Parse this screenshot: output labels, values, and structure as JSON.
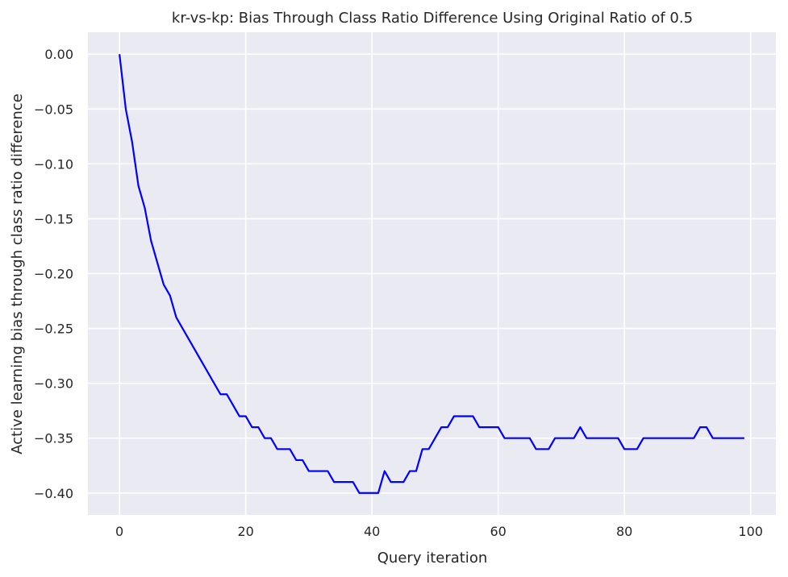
{
  "chart_data": {
    "type": "line",
    "title": "kr-vs-kp: Bias Through Class Ratio Difference Using Original Ratio of 0.5",
    "xlabel": "Query iteration",
    "ylabel": "Active learning bias through class ratio difference",
    "xlim": [
      -5,
      104
    ],
    "ylim": [
      -0.42,
      0.02
    ],
    "x_ticks": [
      0,
      20,
      40,
      60,
      80,
      100
    ],
    "y_ticks": [
      0.0,
      -0.05,
      -0.1,
      -0.15,
      -0.2,
      -0.25,
      -0.3,
      -0.35,
      -0.4
    ],
    "x_tick_labels": [
      "0",
      "20",
      "40",
      "60",
      "80",
      "100"
    ],
    "y_tick_labels": [
      "0.00",
      "−0.05",
      "−0.10",
      "−0.15",
      "−0.20",
      "−0.25",
      "−0.30",
      "−0.35",
      "−0.40"
    ],
    "grid": true,
    "legend": "none",
    "colors": {
      "background": "#eaeaf2",
      "grid": "#ffffff",
      "line": "#0000ff"
    },
    "series": [
      {
        "x": [
          0,
          1,
          2,
          3,
          4,
          5,
          6,
          7,
          8,
          9,
          10,
          11,
          12,
          13,
          14,
          15,
          16,
          17,
          18,
          19,
          20,
          21,
          22,
          23,
          24,
          25,
          26,
          27,
          28,
          29,
          30,
          31,
          32,
          33,
          34,
          35,
          36,
          37,
          38,
          39,
          40,
          41,
          42,
          43,
          44,
          45,
          46,
          47,
          48,
          49,
          50,
          51,
          52,
          53,
          54,
          55,
          56,
          57,
          58,
          59,
          60,
          61,
          62,
          63,
          64,
          65,
          66,
          67,
          68,
          69,
          70,
          71,
          72,
          73,
          74,
          75,
          76,
          77,
          78,
          79,
          80,
          81,
          82,
          83,
          84,
          85,
          86,
          87,
          88,
          89,
          90,
          91,
          92,
          93,
          94,
          95,
          96,
          97,
          98,
          99
        ],
        "values": [
          0.0,
          -0.05,
          -0.08,
          -0.12,
          -0.14,
          -0.17,
          -0.19,
          -0.21,
          -0.22,
          -0.24,
          -0.25,
          -0.26,
          -0.27,
          -0.28,
          -0.29,
          -0.3,
          -0.31,
          -0.31,
          -0.32,
          -0.33,
          -0.33,
          -0.34,
          -0.34,
          -0.35,
          -0.35,
          -0.36,
          -0.36,
          -0.36,
          -0.37,
          -0.37,
          -0.38,
          -0.38,
          -0.38,
          -0.38,
          -0.39,
          -0.39,
          -0.39,
          -0.39,
          -0.4,
          -0.4,
          -0.4,
          -0.4,
          -0.38,
          -0.39,
          -0.39,
          -0.39,
          -0.38,
          -0.38,
          -0.36,
          -0.36,
          -0.35,
          -0.34,
          -0.34,
          -0.33,
          -0.33,
          -0.33,
          -0.33,
          -0.34,
          -0.34,
          -0.34,
          -0.34,
          -0.35,
          -0.35,
          -0.35,
          -0.35,
          -0.35,
          -0.36,
          -0.36,
          -0.36,
          -0.35,
          -0.35,
          -0.35,
          -0.35,
          -0.34,
          -0.35,
          -0.35,
          -0.35,
          -0.35,
          -0.35,
          -0.35,
          -0.36,
          -0.36,
          -0.36,
          -0.35,
          -0.35,
          -0.35,
          -0.35,
          -0.35,
          -0.35,
          -0.35,
          -0.35,
          -0.35,
          -0.34,
          -0.34,
          -0.35,
          -0.35,
          -0.35,
          -0.35,
          -0.35,
          -0.35
        ]
      }
    ]
  }
}
